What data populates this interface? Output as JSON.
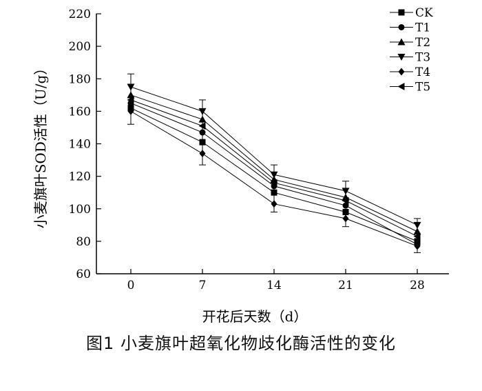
{
  "figure_caption": "图1  小麦旗叶超氧化物歧化酶活性的变化",
  "chart_data": {
    "type": "line",
    "xlabel": "开花后天数（d）",
    "ylabel": "小麦旗叶SOD活性（U/g）",
    "x": [
      0,
      7,
      14,
      21,
      28
    ],
    "ylim": [
      60,
      220
    ],
    "yticks": [
      60,
      80,
      100,
      120,
      140,
      160,
      180,
      200,
      220
    ],
    "legend_position": "top-right",
    "series": [
      {
        "name": "CK",
        "marker": "square",
        "values": [
          162,
          141,
          110,
          98,
          80
        ]
      },
      {
        "name": "T1",
        "marker": "circle",
        "values": [
          165,
          147,
          114,
          102,
          78
        ]
      },
      {
        "name": "T2",
        "marker": "triangle-up",
        "values": [
          170,
          155,
          118,
          107,
          86
        ]
      },
      {
        "name": "T3",
        "marker": "triangle-down",
        "values": [
          175,
          160,
          121,
          111,
          90
        ]
      },
      {
        "name": "T4",
        "marker": "diamond",
        "values": [
          160,
          134,
          103,
          94,
          77
        ]
      },
      {
        "name": "T5",
        "marker": "triangle-left",
        "values": [
          167,
          151,
          116,
          105,
          83
        ]
      }
    ],
    "error_bars": {
      "x0": [
        152,
        183
      ],
      "x7": [
        127,
        167
      ],
      "x14": [
        98,
        127
      ],
      "x21": [
        89,
        117
      ],
      "x28": [
        73,
        94
      ]
    }
  }
}
